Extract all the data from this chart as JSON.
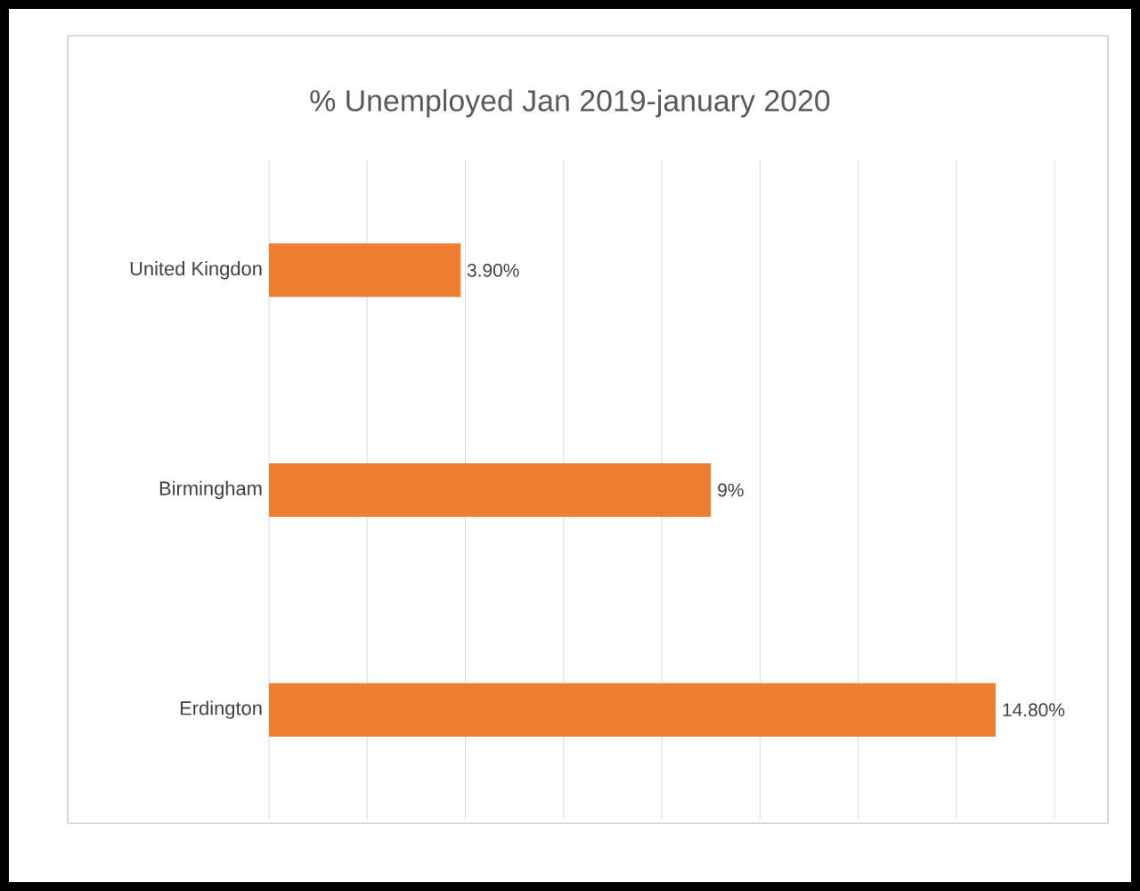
{
  "chart_data": {
    "type": "bar",
    "orientation": "horizontal",
    "title": "% Unemployed  Jan 2019-january 2020",
    "categories": [
      "United Kingdon",
      "Birmingham",
      "Erdington"
    ],
    "values": [
      3.9,
      9,
      14.8
    ],
    "value_labels": [
      "3.90%",
      "9%",
      "14.80%"
    ],
    "color": "#ed7d31",
    "xlim": [
      0,
      16
    ],
    "xticks": [
      {
        "value": 0,
        "label": null
      },
      {
        "value": 2,
        "label": null
      },
      {
        "value": 4,
        "label": null
      },
      {
        "value": 6,
        "label": null
      },
      {
        "value": 8,
        "label": null
      },
      {
        "value": 10,
        "label": null
      },
      {
        "value": 12,
        "label": null
      },
      {
        "value": 14,
        "label": null
      },
      {
        "value": 16,
        "label": null
      }
    ],
    "grid": "x",
    "tick_labels": "y"
  }
}
